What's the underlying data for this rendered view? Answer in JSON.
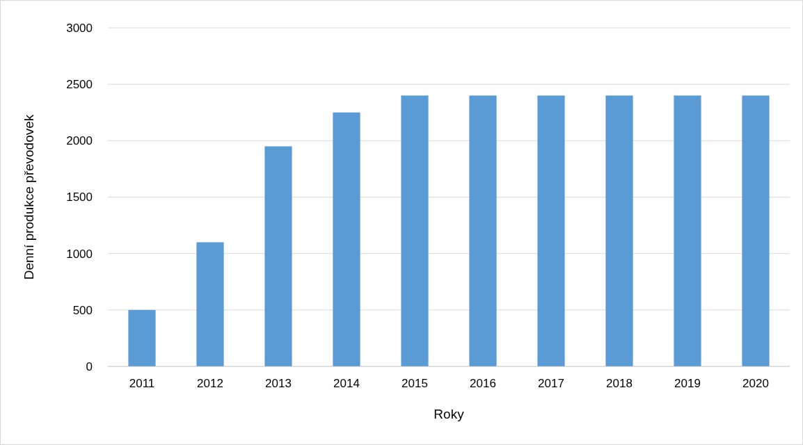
{
  "chart_data": {
    "type": "bar",
    "xlabel": "Roky",
    "ylabel": "Denní produkce převodovek",
    "categories": [
      "2011",
      "2012",
      "2013",
      "2014",
      "2015",
      "2016",
      "2017",
      "2018",
      "2019",
      "2020"
    ],
    "values": [
      500,
      1100,
      1950,
      2250,
      2400,
      2400,
      2400,
      2400,
      2400,
      2400
    ],
    "color": "#5b9bd5",
    "ylim": [
      0,
      3000
    ],
    "yticks": [
      0,
      500,
      1000,
      1500,
      2000,
      2500,
      3000
    ],
    "grid": "y"
  }
}
